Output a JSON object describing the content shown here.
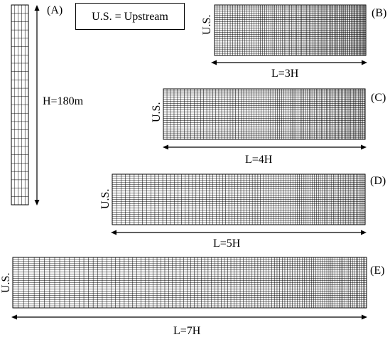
{
  "legend": {
    "text": "U.S. = Upstream"
  },
  "panels": [
    {
      "id": "A",
      "label": "(A)",
      "height_label": "H=180m",
      "cols": 5,
      "rows": 24
    },
    {
      "id": "B",
      "label": "(B)",
      "side_label": "U.S.",
      "length_label": "L=3H",
      "cols": 95,
      "rows": 24
    },
    {
      "id": "C",
      "label": "(C)",
      "side_label": "U.S.",
      "length_label": "L=4H",
      "cols": 95,
      "rows": 24
    },
    {
      "id": "D",
      "label": "(D)",
      "side_label": "U.S.",
      "length_label": "L=5H",
      "cols": 95,
      "rows": 24
    },
    {
      "id": "E",
      "label": "(E)",
      "side_label": "U.S.",
      "length_label": "L=7H",
      "cols": 110,
      "rows": 24
    }
  ],
  "colors": {
    "line": "#000000",
    "background": "#ffffff"
  }
}
